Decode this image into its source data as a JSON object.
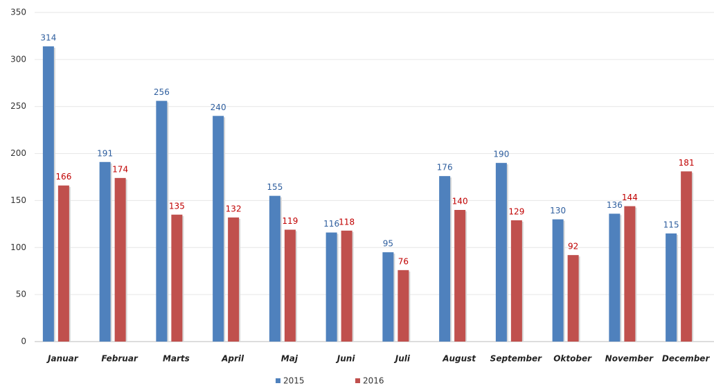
{
  "chart_data": {
    "type": "bar",
    "categories": [
      "Januar",
      "Februar",
      "Marts",
      "April",
      "Maj",
      "Juni",
      "Juli",
      "August",
      "September",
      "Oktober",
      "November",
      "December"
    ],
    "series": [
      {
        "name": "2015",
        "color": "#4f81bd",
        "values": [
          314,
          191,
          256,
          240,
          155,
          116,
          95,
          176,
          190,
          130,
          136,
          115
        ]
      },
      {
        "name": "2016",
        "color": "#c0504d",
        "values": [
          166,
          174,
          135,
          132,
          119,
          118,
          76,
          140,
          129,
          92,
          144,
          181
        ]
      }
    ],
    "ylim": [
      0,
      350
    ],
    "yticks": [
      0,
      50,
      100,
      150,
      200,
      250,
      300,
      350
    ],
    "grid": true,
    "legend": "bottom"
  }
}
